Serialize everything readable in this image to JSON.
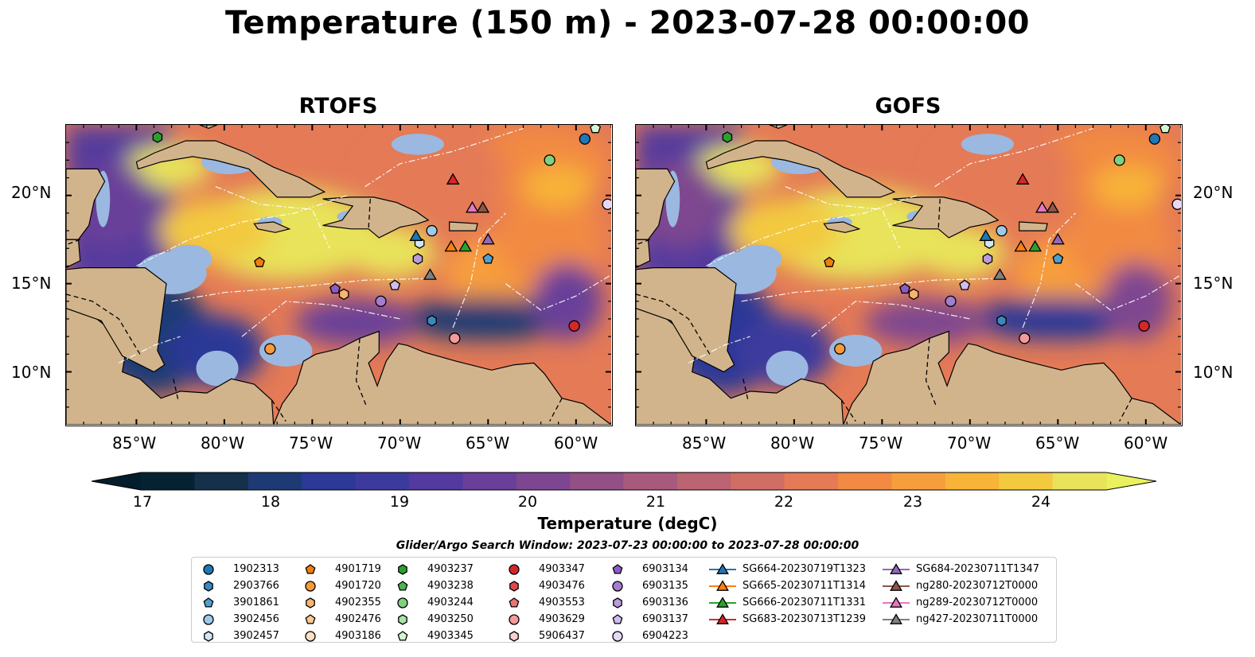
{
  "title": "Temperature (150 m) - 2023-07-28 00:00:00",
  "panels": [
    {
      "name": "RTOFS"
    },
    {
      "name": "GOFS"
    }
  ],
  "map_extent": {
    "lon": [
      -89,
      -58
    ],
    "lat": [
      7,
      24
    ]
  },
  "lon_ticks": [
    "85°W",
    "80°W",
    "75°W",
    "70°W",
    "65°W",
    "60°W"
  ],
  "lat_ticks": [
    "10°N",
    "15°N",
    "20°N"
  ],
  "colorbar": {
    "label": "Temperature (degC)",
    "ticks": [
      "17",
      "18",
      "19",
      "20",
      "21",
      "22",
      "23",
      "24"
    ],
    "range": [
      16.75,
      24.5
    ],
    "colors": [
      "#052233",
      "#14304a",
      "#1e3a75",
      "#2c3996",
      "#3d3a9e",
      "#523a9e",
      "#693f99",
      "#7e4690",
      "#925086",
      "#a85a7c",
      "#bc6471",
      "#d06e65",
      "#e47a56",
      "#f28a43",
      "#f79e3c",
      "#f8b339",
      "#f3c940",
      "#e8e35a"
    ],
    "extend_low_color": "#041d2c",
    "extend_high_color": "#e9f15e"
  },
  "legend": {
    "title": "Glider/Argo Search Window: 2023-07-23 00:00:00 to 2023-07-28 00:00:00",
    "columns": [
      [
        {
          "label": "1902313",
          "shape": "circle",
          "color": "#1f77b4"
        },
        {
          "label": "2903766",
          "shape": "hexagon",
          "color": "#3a88c1"
        },
        {
          "label": "3901861",
          "shape": "pentagon",
          "color": "#4f9fd2"
        },
        {
          "label": "3902456",
          "shape": "circle",
          "color": "#9ecae9"
        },
        {
          "label": "3902457",
          "shape": "hexagon",
          "color": "#d2e6f5"
        }
      ],
      [
        {
          "label": "4901719",
          "shape": "pentagon",
          "color": "#f07e0e"
        },
        {
          "label": "4901720",
          "shape": "circle",
          "color": "#f79a3a"
        },
        {
          "label": "4902355",
          "shape": "hexagon",
          "color": "#fbb46e"
        },
        {
          "label": "4902476",
          "shape": "pentagon",
          "color": "#fcc894"
        },
        {
          "label": "4903186",
          "shape": "circle",
          "color": "#fde0c2"
        }
      ],
      [
        {
          "label": "4903237",
          "shape": "hexagon",
          "color": "#2ca02c"
        },
        {
          "label": "4903238",
          "shape": "pentagon",
          "color": "#4db44d"
        },
        {
          "label": "4903244",
          "shape": "circle",
          "color": "#7fd17f"
        },
        {
          "label": "4903250",
          "shape": "hexagon",
          "color": "#a6e3a6"
        },
        {
          "label": "4903345",
          "shape": "pentagon",
          "color": "#d4f5d4"
        }
      ],
      [
        {
          "label": "4903347",
          "shape": "circle",
          "color": "#d62728"
        },
        {
          "label": "4903476",
          "shape": "hexagon",
          "color": "#e04848"
        },
        {
          "label": "4903553",
          "shape": "pentagon",
          "color": "#ec7474"
        },
        {
          "label": "4903629",
          "shape": "circle",
          "color": "#f49a9a"
        },
        {
          "label": "5906437",
          "shape": "hexagon",
          "color": "#fad0d0"
        }
      ],
      [
        {
          "label": "6903134",
          "shape": "pentagon",
          "color": "#8c5cc4"
        },
        {
          "label": "6903135",
          "shape": "circle",
          "color": "#a47cd0"
        },
        {
          "label": "6903136",
          "shape": "hexagon",
          "color": "#ba9be0"
        },
        {
          "label": "6903137",
          "shape": "pentagon",
          "color": "#d0bdee"
        },
        {
          "label": "6904223",
          "shape": "circle",
          "color": "#e6d8f7"
        }
      ],
      [
        {
          "label": "SG664-20230719T1323",
          "shape": "triangle",
          "color": "#1f77b4"
        },
        {
          "label": "SG665-20230711T1314",
          "shape": "triangle",
          "color": "#ff7f0e"
        },
        {
          "label": "SG666-20230711T1331",
          "shape": "triangle",
          "color": "#2ca02c"
        },
        {
          "label": "SG683-20230713T1239",
          "shape": "triangle",
          "color": "#d62728"
        }
      ],
      [
        {
          "label": "SG684-20230711T1347",
          "shape": "triangle",
          "color": "#9467bd"
        },
        {
          "label": "ng280-20230712T0000",
          "shape": "triangle",
          "color": "#8c564b"
        },
        {
          "label": "ng289-20230712T0000",
          "shape": "triangle",
          "color": "#e377c2"
        },
        {
          "label": "ng427-20230711T0000",
          "shape": "triangle",
          "color": "#7f7f7f"
        }
      ]
    ]
  },
  "markers": [
    {
      "label": "1902313",
      "lon": -59.5,
      "lat": 23.2
    },
    {
      "label": "2903766",
      "lon": -68.2,
      "lat": 12.9
    },
    {
      "label": "3901861",
      "lon": -65.0,
      "lat": 16.4
    },
    {
      "label": "3902456",
      "lon": -68.2,
      "lat": 18.0
    },
    {
      "label": "3902457",
      "lon": -68.9,
      "lat": 17.3
    },
    {
      "label": "4901719",
      "lon": -78.0,
      "lat": 16.2
    },
    {
      "label": "4901720",
      "lon": -77.4,
      "lat": 11.3
    },
    {
      "label": "4902355",
      "lon": -73.2,
      "lat": 14.4
    },
    {
      "label": "4903237",
      "lon": -83.8,
      "lat": 23.3
    },
    {
      "label": "4903244",
      "lon": -61.5,
      "lat": 22.0
    },
    {
      "label": "4903345",
      "lon": -58.9,
      "lat": 23.8
    },
    {
      "label": "4903347",
      "lon": -60.1,
      "lat": 12.6
    },
    {
      "label": "4903629",
      "lon": -66.9,
      "lat": 11.9
    },
    {
      "label": "6903134",
      "lon": -73.7,
      "lat": 14.7
    },
    {
      "label": "6903135",
      "lon": -71.1,
      "lat": 14.0
    },
    {
      "label": "6903136",
      "lon": -69.0,
      "lat": 16.4
    },
    {
      "label": "6903137",
      "lon": -70.3,
      "lat": 14.9
    },
    {
      "label": "6904223",
      "lon": -58.2,
      "lat": 19.5
    },
    {
      "label": "SG664-20230719T1323",
      "lon": -69.1,
      "lat": 17.7
    },
    {
      "label": "SG665-20230711T1314",
      "lon": -67.1,
      "lat": 17.1
    },
    {
      "label": "SG666-20230711T1331",
      "lon": -66.3,
      "lat": 17.1
    },
    {
      "label": "SG683-20230713T1239",
      "lon": -67.0,
      "lat": 20.9
    },
    {
      "label": "SG684-20230711T1347",
      "lon": -65.0,
      "lat": 17.5
    },
    {
      "label": "ng280-20230712T0000",
      "lon": -65.3,
      "lat": 19.3
    },
    {
      "label": "ng289-20230712T0000",
      "lon": -65.9,
      "lat": 19.3
    },
    {
      "label": "ng427-20230711T0000",
      "lon": -68.3,
      "lat": 15.5
    }
  ]
}
